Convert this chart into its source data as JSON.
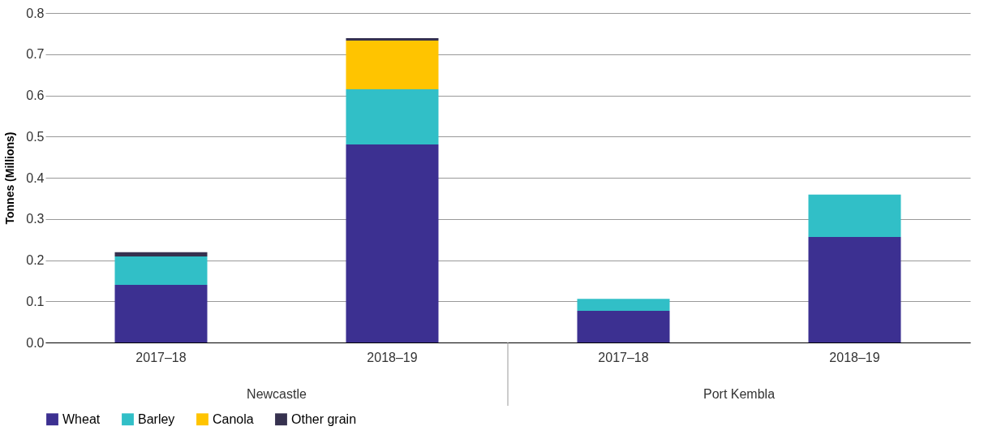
{
  "chart_data": {
    "type": "bar",
    "stacked": true,
    "ylabel": "Tonnes (Millions)",
    "categories": [
      "2017–18",
      "2018–19",
      "2017–18",
      "2018–19"
    ],
    "series": [
      {
        "name": "Wheat",
        "color": "#3c3091",
        "values": [
          0.14,
          0.481,
          0.077,
          0.256
        ]
      },
      {
        "name": "Barley",
        "color": "#31bfc7",
        "values": [
          0.069,
          0.134,
          0.029,
          0.103
        ]
      },
      {
        "name": "Canola",
        "color": "#ffc400",
        "values": [
          0,
          0.118,
          0,
          0
        ]
      },
      {
        "name": "Other grain",
        "color": "#36314f",
        "values": [
          0.01,
          0.006,
          0,
          0
        ]
      }
    ],
    "ylim": [
      0,
      0.8
    ],
    "yticks": [
      {
        "value": 0,
        "label": "0.0"
      },
      0.1,
      0.2,
      0.3,
      0.4,
      0.5,
      0.6,
      0.7,
      0.8
    ],
    "grid": "y",
    "legend": "bottom",
    "annotations": [
      "Newcastle",
      "Port Kembla"
    ]
  }
}
